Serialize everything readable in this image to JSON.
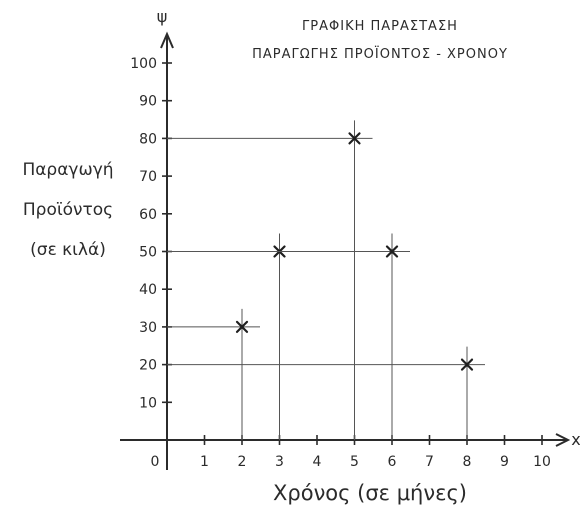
{
  "chart_data": {
    "type": "scatter",
    "title_lines": [
      "ΓΡΑΦΙΚΗ ΠΑΡΑΣΤΑΣΗ",
      "ΠΑΡΑΓΩΓΗΣ ΠΡΟΪΟΝΤΟΣ - ΧΡΟΝΟΥ"
    ],
    "xlabel": "Χρόνος (σε μήνες)",
    "ylabel_lines": [
      "Παραγωγή",
      "Προϊόντος",
      "(σε κιλά)"
    ],
    "x_axis_name": "x",
    "y_axis_name": "ψ",
    "xlim": [
      0,
      10
    ],
    "ylim": [
      0,
      100
    ],
    "x_ticks": [
      0,
      1,
      2,
      3,
      4,
      5,
      6,
      7,
      8,
      9,
      10
    ],
    "y_ticks": [
      10,
      20,
      30,
      40,
      50,
      60,
      70,
      80,
      90,
      100
    ],
    "points": [
      {
        "x": 2,
        "y": 30
      },
      {
        "x": 3,
        "y": 50
      },
      {
        "x": 5,
        "y": 80
      },
      {
        "x": 6,
        "y": 50
      },
      {
        "x": 8,
        "y": 20
      }
    ],
    "grid": false,
    "marker": "x"
  }
}
